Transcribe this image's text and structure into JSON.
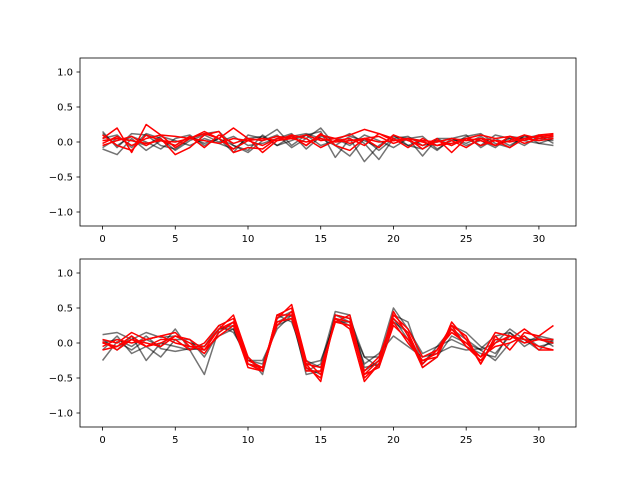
{
  "chart_data": [
    {
      "type": "line",
      "title": "",
      "xlabel": "",
      "ylabel": "",
      "xlim": [
        -1.55,
        32.55
      ],
      "ylim": [
        -1.2,
        1.2
      ],
      "xticks": [
        0,
        5,
        10,
        15,
        20,
        25,
        30
      ],
      "xtick_labels": [
        "0",
        "5",
        "10",
        "15",
        "20",
        "25",
        "30"
      ],
      "yticks": [
        -1.0,
        -0.5,
        0.0,
        0.5,
        1.0
      ],
      "ytick_labels": [
        "−1.0",
        "−0.5",
        "0.0",
        "0.5",
        "1.0"
      ],
      "grid": false,
      "legend": "none",
      "x": [
        0,
        1,
        2,
        3,
        4,
        5,
        6,
        7,
        8,
        9,
        10,
        11,
        12,
        13,
        14,
        15,
        16,
        17,
        18,
        19,
        20,
        21,
        22,
        23,
        24,
        25,
        26,
        27,
        28,
        29,
        30,
        31
      ],
      "series": [
        {
          "group": "gray",
          "color": "#000000",
          "opacity": 0.55,
          "values": [
            0.15,
            -0.08,
            0.12,
            0.1,
            -0.05,
            -0.1,
            0.05,
            0.12,
            0.15,
            -0.05,
            -0.15,
            0.02,
            0.1,
            -0.08,
            0.05,
            0.2,
            -0.05,
            -0.2,
            0.05,
            -0.12,
            0.05,
            0.08,
            -0.05,
            0.0,
            0.05,
            0.1,
            -0.08,
            0.05,
            -0.05,
            0.08,
            0.05,
            0.02
          ]
        },
        {
          "group": "gray",
          "color": "#000000",
          "opacity": 0.55,
          "values": [
            -0.1,
            -0.18,
            0.05,
            -0.12,
            0.02,
            -0.05,
            0.08,
            -0.02,
            0.05,
            -0.15,
            0.1,
            0.05,
            0.18,
            -0.05,
            0.1,
            0.15,
            -0.22,
            0.05,
            -0.28,
            -0.05,
            0.08,
            0.05,
            -0.2,
            0.05,
            -0.05,
            0.08,
            0.12,
            -0.02,
            -0.08,
            0.1,
            -0.02,
            0.05
          ]
        },
        {
          "group": "gray",
          "color": "#000000",
          "opacity": 0.55,
          "values": [
            0.05,
            0.1,
            -0.08,
            0.12,
            0.05,
            -0.12,
            0.02,
            0.1,
            0.0,
            0.08,
            -0.05,
            -0.02,
            0.05,
            0.12,
            -0.1,
            0.08,
            0.05,
            -0.05,
            0.1,
            0.02,
            -0.08,
            0.05,
            0.08,
            -0.1,
            0.02,
            0.05,
            -0.05,
            0.1,
            0.05,
            -0.05,
            0.08,
            0.05
          ]
        },
        {
          "group": "gray",
          "color": "#000000",
          "opacity": 0.55,
          "values": [
            -0.08,
            0.05,
            0.02,
            -0.05,
            0.08,
            0.02,
            -0.05,
            0.05,
            -0.02,
            -0.1,
            0.05,
            0.08,
            -0.05,
            0.02,
            0.1,
            -0.05,
            0.02,
            0.12,
            -0.02,
            -0.25,
            0.05,
            -0.05,
            0.02,
            -0.12,
            0.05,
            -0.02,
            0.08,
            -0.05,
            0.05,
            0.02,
            -0.02,
            -0.05
          ]
        },
        {
          "group": "gray",
          "color": "#000000",
          "opacity": 0.55,
          "values": [
            0.12,
            -0.05,
            0.08,
            0.0,
            -0.1,
            0.05,
            0.1,
            -0.05,
            0.05,
            -0.05,
            -0.12,
            0.1,
            -0.05,
            0.08,
            0.12,
            0.05,
            -0.05,
            0.08,
            0.02,
            -0.08,
            0.1,
            -0.05,
            -0.1,
            0.05,
            0.05,
            -0.05,
            0.02,
            -0.08,
            0.08,
            0.05,
            0.1,
            -0.02
          ]
        },
        {
          "group": "red",
          "color": "#ff0000",
          "opacity": 1,
          "values": [
            0.05,
            0.2,
            -0.15,
            0.25,
            0.1,
            0.08,
            0.05,
            0.15,
            0.05,
            0.2,
            0.05,
            0.02,
            0.08,
            0.05,
            0.1,
            0.02,
            0.05,
            0.1,
            0.18,
            0.12,
            0.02,
            0.05,
            0.0,
            -0.05,
            -0.02,
            0.05,
            0.1,
            0.05,
            0.08,
            0.02,
            0.1,
            0.12
          ]
        },
        {
          "group": "red",
          "color": "#ff0000",
          "opacity": 1,
          "values": [
            -0.05,
            0.02,
            0.08,
            -0.05,
            0.05,
            -0.18,
            -0.08,
            0.1,
            0.15,
            -0.15,
            -0.08,
            -0.1,
            0.05,
            0.08,
            -0.05,
            0.12,
            -0.05,
            -0.12,
            0.05,
            -0.08,
            0.1,
            0.02,
            -0.05,
            0.05,
            -0.15,
            0.05,
            -0.05,
            0.02,
            -0.08,
            0.05,
            0.08,
            0.1
          ]
        },
        {
          "group": "red",
          "color": "#ff0000",
          "opacity": 1,
          "values": [
            0.1,
            -0.05,
            -0.12,
            0.1,
            0.02,
            -0.05,
            0.08,
            -0.08,
            0.1,
            -0.02,
            0.05,
            -0.15,
            0.02,
            0.1,
            0.05,
            -0.08,
            0.02,
            0.05,
            -0.05,
            0.12,
            0.05,
            -0.08,
            0.05,
            -0.05,
            0.02,
            -0.08,
            0.05,
            -0.05,
            0.02,
            0.1,
            0.05,
            0.08
          ]
        },
        {
          "group": "red",
          "color": "#ff0000",
          "opacity": 1,
          "values": [
            0.02,
            0.05,
            0.02,
            -0.02,
            0.02,
            0.0,
            0.05,
            0.02,
            -0.02,
            0.05,
            0.02,
            0.05,
            0.02,
            0.05,
            0.0,
            0.05,
            0.0,
            0.02,
            0.05,
            0.0,
            0.02,
            0.05,
            0.02,
            0.0,
            0.05,
            0.02,
            0.05,
            0.02,
            0.0,
            0.05,
            0.02,
            0.05
          ]
        },
        {
          "group": "red",
          "color": "#ff0000",
          "opacity": 1,
          "values": [
            -0.02,
            0.08,
            -0.05,
            0.05,
            0.1,
            -0.08,
            0.05,
            0.12,
            0.05,
            -0.1,
            0.02,
            -0.05,
            0.05,
            0.08,
            -0.05,
            0.1,
            0.05,
            -0.02,
            0.05,
            0.08,
            -0.02,
            0.05,
            -0.1,
            0.02,
            -0.05,
            0.05,
            0.02,
            -0.05,
            0.08,
            -0.02,
            0.05,
            0.08
          ]
        }
      ]
    },
    {
      "type": "line",
      "title": "",
      "xlabel": "",
      "ylabel": "",
      "xlim": [
        -1.55,
        32.55
      ],
      "ylim": [
        -1.2,
        1.2
      ],
      "xticks": [
        0,
        5,
        10,
        15,
        20,
        25,
        30
      ],
      "xtick_labels": [
        "0",
        "5",
        "10",
        "15",
        "20",
        "25",
        "30"
      ],
      "yticks": [
        -1.0,
        -0.5,
        0.0,
        0.5,
        1.0
      ],
      "ytick_labels": [
        "−1.0",
        "−0.5",
        "0.0",
        "0.5",
        "1.0"
      ],
      "grid": false,
      "legend": "none",
      "x": [
        0,
        1,
        2,
        3,
        4,
        5,
        6,
        7,
        8,
        9,
        10,
        11,
        12,
        13,
        14,
        15,
        16,
        17,
        18,
        19,
        20,
        21,
        22,
        23,
        24,
        25,
        26,
        27,
        28,
        29,
        30,
        31
      ],
      "series": [
        {
          "group": "gray",
          "color": "#000000",
          "opacity": 0.55,
          "values": [
            0.12,
            0.15,
            0.05,
            0.15,
            0.08,
            0.1,
            0.0,
            -0.05,
            0.2,
            0.25,
            -0.2,
            -0.4,
            0.3,
            0.4,
            -0.45,
            -0.4,
            0.4,
            0.35,
            -0.2,
            -0.2,
            0.5,
            0.2,
            -0.15,
            -0.05,
            0.2,
            0.05,
            -0.1,
            0.0,
            0.2,
            0.05,
            0.05,
            0.02
          ]
        },
        {
          "group": "gray",
          "color": "#000000",
          "opacity": 0.55,
          "values": [
            -0.25,
            0.02,
            -0.1,
            0.05,
            -0.05,
            0.2,
            -0.1,
            -0.45,
            0.2,
            0.2,
            -0.3,
            -0.35,
            0.35,
            0.45,
            -0.35,
            -0.45,
            0.4,
            0.3,
            -0.4,
            -0.25,
            0.35,
            0.05,
            -0.3,
            -0.05,
            0.05,
            -0.05,
            -0.15,
            -0.2,
            0.15,
            -0.05,
            0.08,
            -0.05
          ]
        },
        {
          "group": "gray",
          "color": "#000000",
          "opacity": 0.55,
          "values": [
            -0.1,
            0.1,
            -0.15,
            -0.05,
            -0.2,
            0.05,
            0.05,
            -0.2,
            0.15,
            0.3,
            -0.25,
            -0.3,
            0.25,
            0.35,
            -0.4,
            -0.3,
            0.45,
            0.4,
            -0.35,
            -0.3,
            0.4,
            0.3,
            -0.3,
            -0.1,
            0.25,
            0.15,
            -0.05,
            -0.15,
            0.1,
            0.05,
            -0.1,
            0.05
          ]
        },
        {
          "group": "gray",
          "color": "#000000",
          "opacity": 0.55,
          "values": [
            0.05,
            -0.1,
            0.1,
            -0.25,
            0.0,
            -0.05,
            -0.1,
            -0.05,
            0.25,
            0.15,
            -0.2,
            -0.45,
            0.4,
            0.3,
            -0.25,
            -0.35,
            0.35,
            0.25,
            -0.2,
            -0.35,
            0.3,
            0.15,
            -0.35,
            -0.2,
            0.1,
            0.0,
            -0.1,
            -0.25,
            0.0,
            0.1,
            -0.05,
            0.0
          ]
        },
        {
          "group": "gray",
          "color": "#000000",
          "opacity": 0.55,
          "values": [
            0.0,
            0.05,
            -0.05,
            0.1,
            -0.08,
            -0.12,
            -0.08,
            -0.1,
            0.1,
            0.2,
            -0.25,
            -0.25,
            0.2,
            0.4,
            -0.3,
            -0.25,
            0.3,
            0.3,
            -0.3,
            -0.15,
            0.1,
            -0.05,
            -0.2,
            -0.15,
            -0.05,
            -0.1,
            -0.08,
            0.1,
            0.15,
            0.0,
            0.1,
            0.05
          ]
        },
        {
          "group": "red",
          "color": "#ff0000",
          "opacity": 1,
          "values": [
            0.05,
            0.0,
            0.15,
            0.05,
            0.1,
            0.15,
            -0.05,
            -0.1,
            0.2,
            0.4,
            -0.2,
            -0.4,
            0.4,
            0.5,
            -0.3,
            -0.55,
            0.4,
            0.35,
            -0.5,
            -0.3,
            0.45,
            0.1,
            -0.35,
            -0.2,
            0.3,
            0.05,
            -0.3,
            0.1,
            -0.1,
            0.15,
            0.1,
            0.25
          ]
        },
        {
          "group": "red",
          "color": "#ff0000",
          "opacity": 1,
          "values": [
            -0.1,
            -0.05,
            0.1,
            -0.05,
            0.05,
            0.05,
            -0.1,
            0.0,
            0.25,
            0.35,
            -0.25,
            -0.35,
            0.35,
            0.55,
            -0.25,
            -0.45,
            0.35,
            0.2,
            -0.55,
            -0.3,
            0.4,
            0.2,
            -0.2,
            -0.1,
            0.25,
            -0.05,
            -0.2,
            0.15,
            0.1,
            0.05,
            -0.05,
            -0.1
          ]
        },
        {
          "group": "red",
          "color": "#ff0000",
          "opacity": 1,
          "values": [
            0.0,
            -0.05,
            0.05,
            0.0,
            -0.05,
            0.1,
            0.0,
            -0.15,
            0.15,
            0.3,
            -0.3,
            -0.4,
            0.3,
            0.35,
            -0.3,
            -0.35,
            0.3,
            0.4,
            -0.45,
            -0.25,
            0.3,
            0.0,
            -0.25,
            -0.15,
            0.2,
            -0.05,
            -0.25,
            0.0,
            0.1,
            0.0,
            0.05,
            0.0
          ]
        },
        {
          "group": "red",
          "color": "#ff0000",
          "opacity": 1,
          "values": [
            0.02,
            -0.1,
            0.05,
            -0.05,
            0.0,
            0.1,
            0.05,
            -0.1,
            0.1,
            0.25,
            -0.35,
            -0.4,
            0.4,
            0.4,
            -0.35,
            -0.5,
            0.35,
            0.3,
            -0.4,
            -0.2,
            0.35,
            0.15,
            -0.3,
            -0.1,
            0.15,
            0.0,
            -0.2,
            -0.05,
            0.0,
            0.1,
            -0.1,
            -0.1
          ]
        },
        {
          "group": "red",
          "color": "#ff0000",
          "opacity": 1,
          "values": [
            -0.05,
            0.05,
            0.0,
            0.05,
            0.1,
            0.0,
            -0.05,
            -0.05,
            0.2,
            0.3,
            -0.3,
            -0.35,
            0.25,
            0.45,
            -0.4,
            -0.4,
            0.3,
            0.25,
            -0.45,
            -0.35,
            0.25,
            0.05,
            -0.25,
            -0.2,
            0.25,
            0.1,
            -0.3,
            0.05,
            0.05,
            0.2,
            0.05,
            0.05
          ]
        }
      ]
    }
  ]
}
